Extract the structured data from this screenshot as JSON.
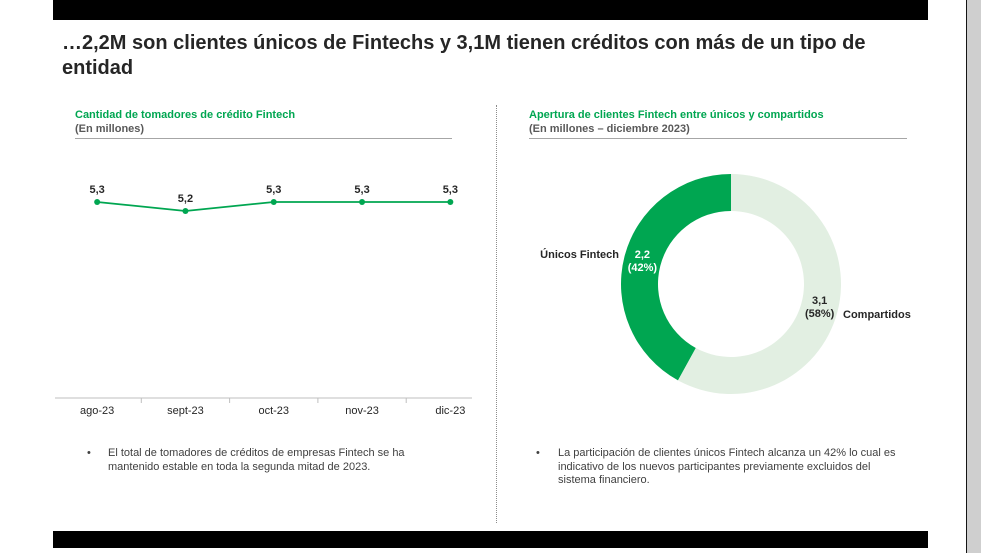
{
  "slide": {
    "title": "…2,2M son clientes únicos de Fintechs y 3,1M tienen créditos con más de un tipo de entidad",
    "bullet_symbol": "•",
    "left_bullet": "El total de tomadores de créditos de empresas Fintech se ha mantenido estable en toda la segunda mitad de 2023.",
    "right_bullet": "La participación de clientes únicos Fintech alcanza un 42% lo cual es indicativo de los nuevos participantes previamente excluidos del sistema financiero."
  },
  "colors": {
    "accent_green": "#00a651"
  },
  "chart_data": [
    {
      "type": "line",
      "title": "Cantidad de tomadores de crédito Fintech",
      "subtitle": "(En millones)",
      "categories": [
        "ago-23",
        "sept-23",
        "oct-23",
        "nov-23",
        "dic-23"
      ],
      "values": [
        5.3,
        5.2,
        5.3,
        5.3,
        5.3
      ],
      "data_labels": [
        "5,3",
        "5,2",
        "5,3",
        "5,3",
        "5,3"
      ],
      "markers": true,
      "y_axis_visible": false,
      "grid": false,
      "legend": "none"
    },
    {
      "type": "pie",
      "donut": true,
      "title": "Apertura de clientes Fintech entre únicos y compartidos",
      "subtitle": "(En millones – diciembre 2023)",
      "slices": [
        {
          "name": "Únicos Fintech",
          "value": 2.2,
          "percent": 42,
          "value_label": "2,2",
          "percent_label": "(42%)",
          "color": "#00a651",
          "label_color": "#ffffff"
        },
        {
          "name": "Compartidos",
          "value": 3.1,
          "percent": 58,
          "value_label": "3,1",
          "percent_label": "(58%)",
          "color": "#e2efe2",
          "label_color": "#262626"
        }
      ],
      "legend": "none"
    }
  ]
}
